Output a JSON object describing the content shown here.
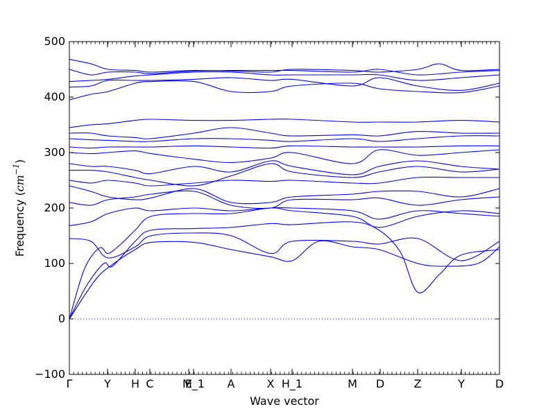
{
  "chart_data": {
    "type": "line",
    "title": "",
    "xlabel": "Wave vector",
    "ylabel": {
      "prefix": "Frequency (",
      "unit_base": "cm",
      "unit_exp": "−1",
      "suffix": ")"
    },
    "ylim": [
      -100,
      500
    ],
    "yticks": [
      -100,
      0,
      100,
      200,
      300,
      400,
      500
    ],
    "xlim": [
      0,
      1
    ],
    "xticks": [
      {
        "label": "Γ",
        "x": 0.0
      },
      {
        "label": "Y",
        "x": 0.0887
      },
      {
        "label": "H",
        "x": 0.1532
      },
      {
        "label": "C",
        "x": 0.1871
      },
      {
        "label": "E",
        "x": 0.2774
      },
      {
        "label": "M_1",
        "x": 0.2887
      },
      {
        "label": "A",
        "x": 0.3758
      },
      {
        "label": "X",
        "x": 0.4677
      },
      {
        "label": "H_1",
        "x": 0.5177
      },
      {
        "label": "M",
        "x": 0.6581
      },
      {
        "label": "D",
        "x": 0.7226
      },
      {
        "label": "Z",
        "x": 0.8097
      },
      {
        "label": "Y",
        "x": 0.9113
      },
      {
        "label": "D",
        "x": 1.0
      }
    ],
    "zero_line": {
      "y": 0,
      "style": "dotted"
    },
    "line_color": "#0000ff",
    "grid": false,
    "legend": "none",
    "series": [
      {
        "values": [
          [
            0,
            0
          ],
          [
            0.035,
            90
          ],
          [
            0.07,
            128
          ],
          [
            0.09,
            118
          ],
          [
            0.12,
            135
          ],
          [
            0.153,
            160
          ],
          [
            0.19,
            185
          ],
          [
            0.28,
            190
          ],
          [
            0.376,
            190
          ],
          [
            0.468,
            200
          ],
          [
            0.518,
            195
          ],
          [
            0.658,
            185
          ],
          [
            0.72,
            165
          ],
          [
            0.81,
            185
          ],
          [
            0.91,
            195
          ],
          [
            1.0,
            190
          ]
        ]
      },
      {
        "values": [
          [
            0,
            0
          ],
          [
            0.04,
            60
          ],
          [
            0.08,
            100
          ],
          [
            0.1,
            95
          ],
          [
            0.153,
            140
          ],
          [
            0.19,
            160
          ],
          [
            0.29,
            163
          ],
          [
            0.376,
            165
          ],
          [
            0.468,
            172
          ],
          [
            0.518,
            170
          ],
          [
            0.658,
            175
          ],
          [
            0.72,
            160
          ],
          [
            0.77,
            120
          ],
          [
            0.81,
            48
          ],
          [
            0.86,
            80
          ],
          [
            0.91,
            115
          ],
          [
            1.0,
            125
          ]
        ]
      },
      {
        "values": [
          [
            0,
            0
          ],
          [
            0.06,
            70
          ],
          [
            0.1,
            98
          ],
          [
            0.153,
            125
          ],
          [
            0.19,
            138
          ],
          [
            0.29,
            138
          ],
          [
            0.376,
            125
          ],
          [
            0.468,
            112
          ],
          [
            0.518,
            105
          ],
          [
            0.58,
            140
          ],
          [
            0.658,
            130
          ],
          [
            0.72,
            125
          ],
          [
            0.81,
            100
          ],
          [
            0.87,
            95
          ],
          [
            0.95,
            100
          ],
          [
            1.0,
            130
          ]
        ]
      },
      {
        "values": [
          [
            0,
            145
          ],
          [
            0.05,
            140
          ],
          [
            0.09,
            110
          ],
          [
            0.153,
            130
          ],
          [
            0.19,
            150
          ],
          [
            0.29,
            155
          ],
          [
            0.376,
            150
          ],
          [
            0.468,
            118
          ],
          [
            0.518,
            140
          ],
          [
            0.658,
            140
          ],
          [
            0.72,
            135
          ],
          [
            0.81,
            145
          ],
          [
            0.91,
            105
          ],
          [
            1.0,
            140
          ]
        ]
      },
      {
        "values": [
          [
            0,
            168
          ],
          [
            0.05,
            175
          ],
          [
            0.09,
            190
          ],
          [
            0.153,
            200
          ],
          [
            0.19,
            195
          ],
          [
            0.29,
            200
          ],
          [
            0.376,
            195
          ],
          [
            0.468,
            200
          ],
          [
            0.518,
            200
          ],
          [
            0.658,
            195
          ],
          [
            0.72,
            180
          ],
          [
            0.81,
            195
          ],
          [
            0.91,
            190
          ],
          [
            1.0,
            185
          ]
        ]
      },
      {
        "values": [
          [
            0,
            210
          ],
          [
            0.05,
            205
          ],
          [
            0.09,
            215
          ],
          [
            0.153,
            220
          ],
          [
            0.19,
            225
          ],
          [
            0.29,
            230
          ],
          [
            0.376,
            205
          ],
          [
            0.468,
            200
          ],
          [
            0.518,
            215
          ],
          [
            0.658,
            215
          ],
          [
            0.72,
            218
          ],
          [
            0.81,
            205
          ],
          [
            0.91,
            215
          ],
          [
            1.0,
            220
          ]
        ]
      },
      {
        "values": [
          [
            0,
            240
          ],
          [
            0.05,
            230
          ],
          [
            0.09,
            220
          ],
          [
            0.153,
            215
          ],
          [
            0.19,
            218
          ],
          [
            0.29,
            235
          ],
          [
            0.376,
            210
          ],
          [
            0.468,
            210
          ],
          [
            0.518,
            220
          ],
          [
            0.658,
            225
          ],
          [
            0.72,
            230
          ],
          [
            0.81,
            230
          ],
          [
            0.91,
            220
          ],
          [
            1.0,
            235
          ]
        ]
      },
      {
        "values": [
          [
            0,
            250
          ],
          [
            0.05,
            245
          ],
          [
            0.09,
            250
          ],
          [
            0.153,
            245
          ],
          [
            0.19,
            240
          ],
          [
            0.29,
            245
          ],
          [
            0.376,
            250
          ],
          [
            0.468,
            248
          ],
          [
            0.518,
            250
          ],
          [
            0.658,
            245
          ],
          [
            0.72,
            245
          ],
          [
            0.81,
            255
          ],
          [
            0.91,
            255
          ],
          [
            1.0,
            255
          ]
        ]
      },
      {
        "values": [
          [
            0,
            268
          ],
          [
            0.05,
            268
          ],
          [
            0.09,
            265
          ],
          [
            0.153,
            255
          ],
          [
            0.19,
            250
          ],
          [
            0.29,
            240
          ],
          [
            0.376,
            258
          ],
          [
            0.468,
            280
          ],
          [
            0.518,
            265
          ],
          [
            0.658,
            255
          ],
          [
            0.72,
            265
          ],
          [
            0.81,
            275
          ],
          [
            0.91,
            265
          ],
          [
            1.0,
            270
          ]
        ]
      },
      {
        "values": [
          [
            0,
            280
          ],
          [
            0.05,
            275
          ],
          [
            0.09,
            275
          ],
          [
            0.153,
            268
          ],
          [
            0.19,
            262
          ],
          [
            0.29,
            275
          ],
          [
            0.376,
            265
          ],
          [
            0.468,
            285
          ],
          [
            0.518,
            275
          ],
          [
            0.658,
            260
          ],
          [
            0.72,
            275
          ],
          [
            0.81,
            285
          ],
          [
            0.91,
            275
          ],
          [
            1.0,
            270
          ]
        ]
      },
      {
        "values": [
          [
            0,
            300
          ],
          [
            0.05,
            298
          ],
          [
            0.09,
            300
          ],
          [
            0.153,
            303
          ],
          [
            0.19,
            298
          ],
          [
            0.29,
            288
          ],
          [
            0.376,
            282
          ],
          [
            0.468,
            290
          ],
          [
            0.518,
            300
          ],
          [
            0.658,
            280
          ],
          [
            0.72,
            305
          ],
          [
            0.81,
            295
          ],
          [
            0.91,
            300
          ],
          [
            1.0,
            305
          ]
        ]
      },
      {
        "values": [
          [
            0,
            310
          ],
          [
            0.05,
            308
          ],
          [
            0.09,
            310
          ],
          [
            0.153,
            310
          ],
          [
            0.19,
            310
          ],
          [
            0.29,
            312
          ],
          [
            0.376,
            310
          ],
          [
            0.468,
            308
          ],
          [
            0.518,
            312
          ],
          [
            0.658,
            310
          ],
          [
            0.72,
            310
          ],
          [
            0.81,
            310
          ],
          [
            0.91,
            312
          ],
          [
            1.0,
            312
          ]
        ]
      },
      {
        "values": [
          [
            0,
            325
          ],
          [
            0.05,
            323
          ],
          [
            0.09,
            322
          ],
          [
            0.153,
            320
          ],
          [
            0.19,
            320
          ],
          [
            0.29,
            325
          ],
          [
            0.376,
            325
          ],
          [
            0.468,
            322
          ],
          [
            0.518,
            320
          ],
          [
            0.658,
            325
          ],
          [
            0.72,
            320
          ],
          [
            0.81,
            325
          ],
          [
            0.91,
            330
          ],
          [
            1.0,
            330
          ]
        ]
      },
      {
        "values": [
          [
            0,
            335
          ],
          [
            0.05,
            335
          ],
          [
            0.09,
            330
          ],
          [
            0.153,
            327
          ],
          [
            0.19,
            325
          ],
          [
            0.29,
            335
          ],
          [
            0.376,
            345
          ],
          [
            0.468,
            335
          ],
          [
            0.518,
            330
          ],
          [
            0.658,
            332
          ],
          [
            0.72,
            330
          ],
          [
            0.81,
            338
          ],
          [
            0.91,
            335
          ],
          [
            1.0,
            335
          ]
        ]
      },
      {
        "values": [
          [
            0,
            345
          ],
          [
            0.05,
            350
          ],
          [
            0.09,
            352
          ],
          [
            0.153,
            358
          ],
          [
            0.19,
            360
          ],
          [
            0.29,
            358
          ],
          [
            0.376,
            358
          ],
          [
            0.468,
            360
          ],
          [
            0.518,
            360
          ],
          [
            0.658,
            355
          ],
          [
            0.72,
            355
          ],
          [
            0.81,
            355
          ],
          [
            0.91,
            358
          ],
          [
            1.0,
            355
          ]
        ]
      },
      {
        "values": [
          [
            0,
            395
          ],
          [
            0.05,
            405
          ],
          [
            0.09,
            410
          ],
          [
            0.153,
            425
          ],
          [
            0.19,
            428
          ],
          [
            0.29,
            428
          ],
          [
            0.376,
            410
          ],
          [
            0.468,
            410
          ],
          [
            0.518,
            420
          ],
          [
            0.658,
            425
          ],
          [
            0.72,
            415
          ],
          [
            0.81,
            410
          ],
          [
            0.91,
            408
          ],
          [
            1.0,
            420
          ]
        ]
      },
      {
        "values": [
          [
            0,
            418
          ],
          [
            0.05,
            420
          ],
          [
            0.09,
            430
          ],
          [
            0.153,
            430
          ],
          [
            0.19,
            430
          ],
          [
            0.29,
            432
          ],
          [
            0.376,
            435
          ],
          [
            0.468,
            430
          ],
          [
            0.518,
            432
          ],
          [
            0.658,
            420
          ],
          [
            0.72,
            435
          ],
          [
            0.81,
            420
          ],
          [
            0.91,
            412
          ],
          [
            1.0,
            425
          ]
        ]
      },
      {
        "values": [
          [
            0,
            428
          ],
          [
            0.05,
            430
          ],
          [
            0.09,
            432
          ],
          [
            0.153,
            438
          ],
          [
            0.19,
            440
          ],
          [
            0.29,
            445
          ],
          [
            0.376,
            445
          ],
          [
            0.468,
            440
          ],
          [
            0.518,
            440
          ],
          [
            0.658,
            440
          ],
          [
            0.72,
            440
          ],
          [
            0.81,
            430
          ],
          [
            0.91,
            435
          ],
          [
            1.0,
            440
          ]
        ]
      },
      {
        "values": [
          [
            0,
            450
          ],
          [
            0.05,
            440
          ],
          [
            0.09,
            445
          ],
          [
            0.153,
            445
          ],
          [
            0.19,
            442
          ],
          [
            0.29,
            447
          ],
          [
            0.376,
            448
          ],
          [
            0.468,
            448
          ],
          [
            0.518,
            448
          ],
          [
            0.658,
            445
          ],
          [
            0.72,
            450
          ],
          [
            0.81,
            440
          ],
          [
            0.91,
            445
          ],
          [
            1.0,
            448
          ]
        ]
      },
      {
        "values": [
          [
            0,
            468
          ],
          [
            0.05,
            460
          ],
          [
            0.09,
            450
          ],
          [
            0.153,
            448
          ],
          [
            0.19,
            445
          ],
          [
            0.29,
            448
          ],
          [
            0.376,
            447
          ],
          [
            0.468,
            445
          ],
          [
            0.518,
            450
          ],
          [
            0.658,
            448
          ],
          [
            0.72,
            445
          ],
          [
            0.81,
            450
          ],
          [
            0.86,
            460
          ],
          [
            0.91,
            448
          ],
          [
            1.0,
            450
          ]
        ]
      }
    ]
  }
}
